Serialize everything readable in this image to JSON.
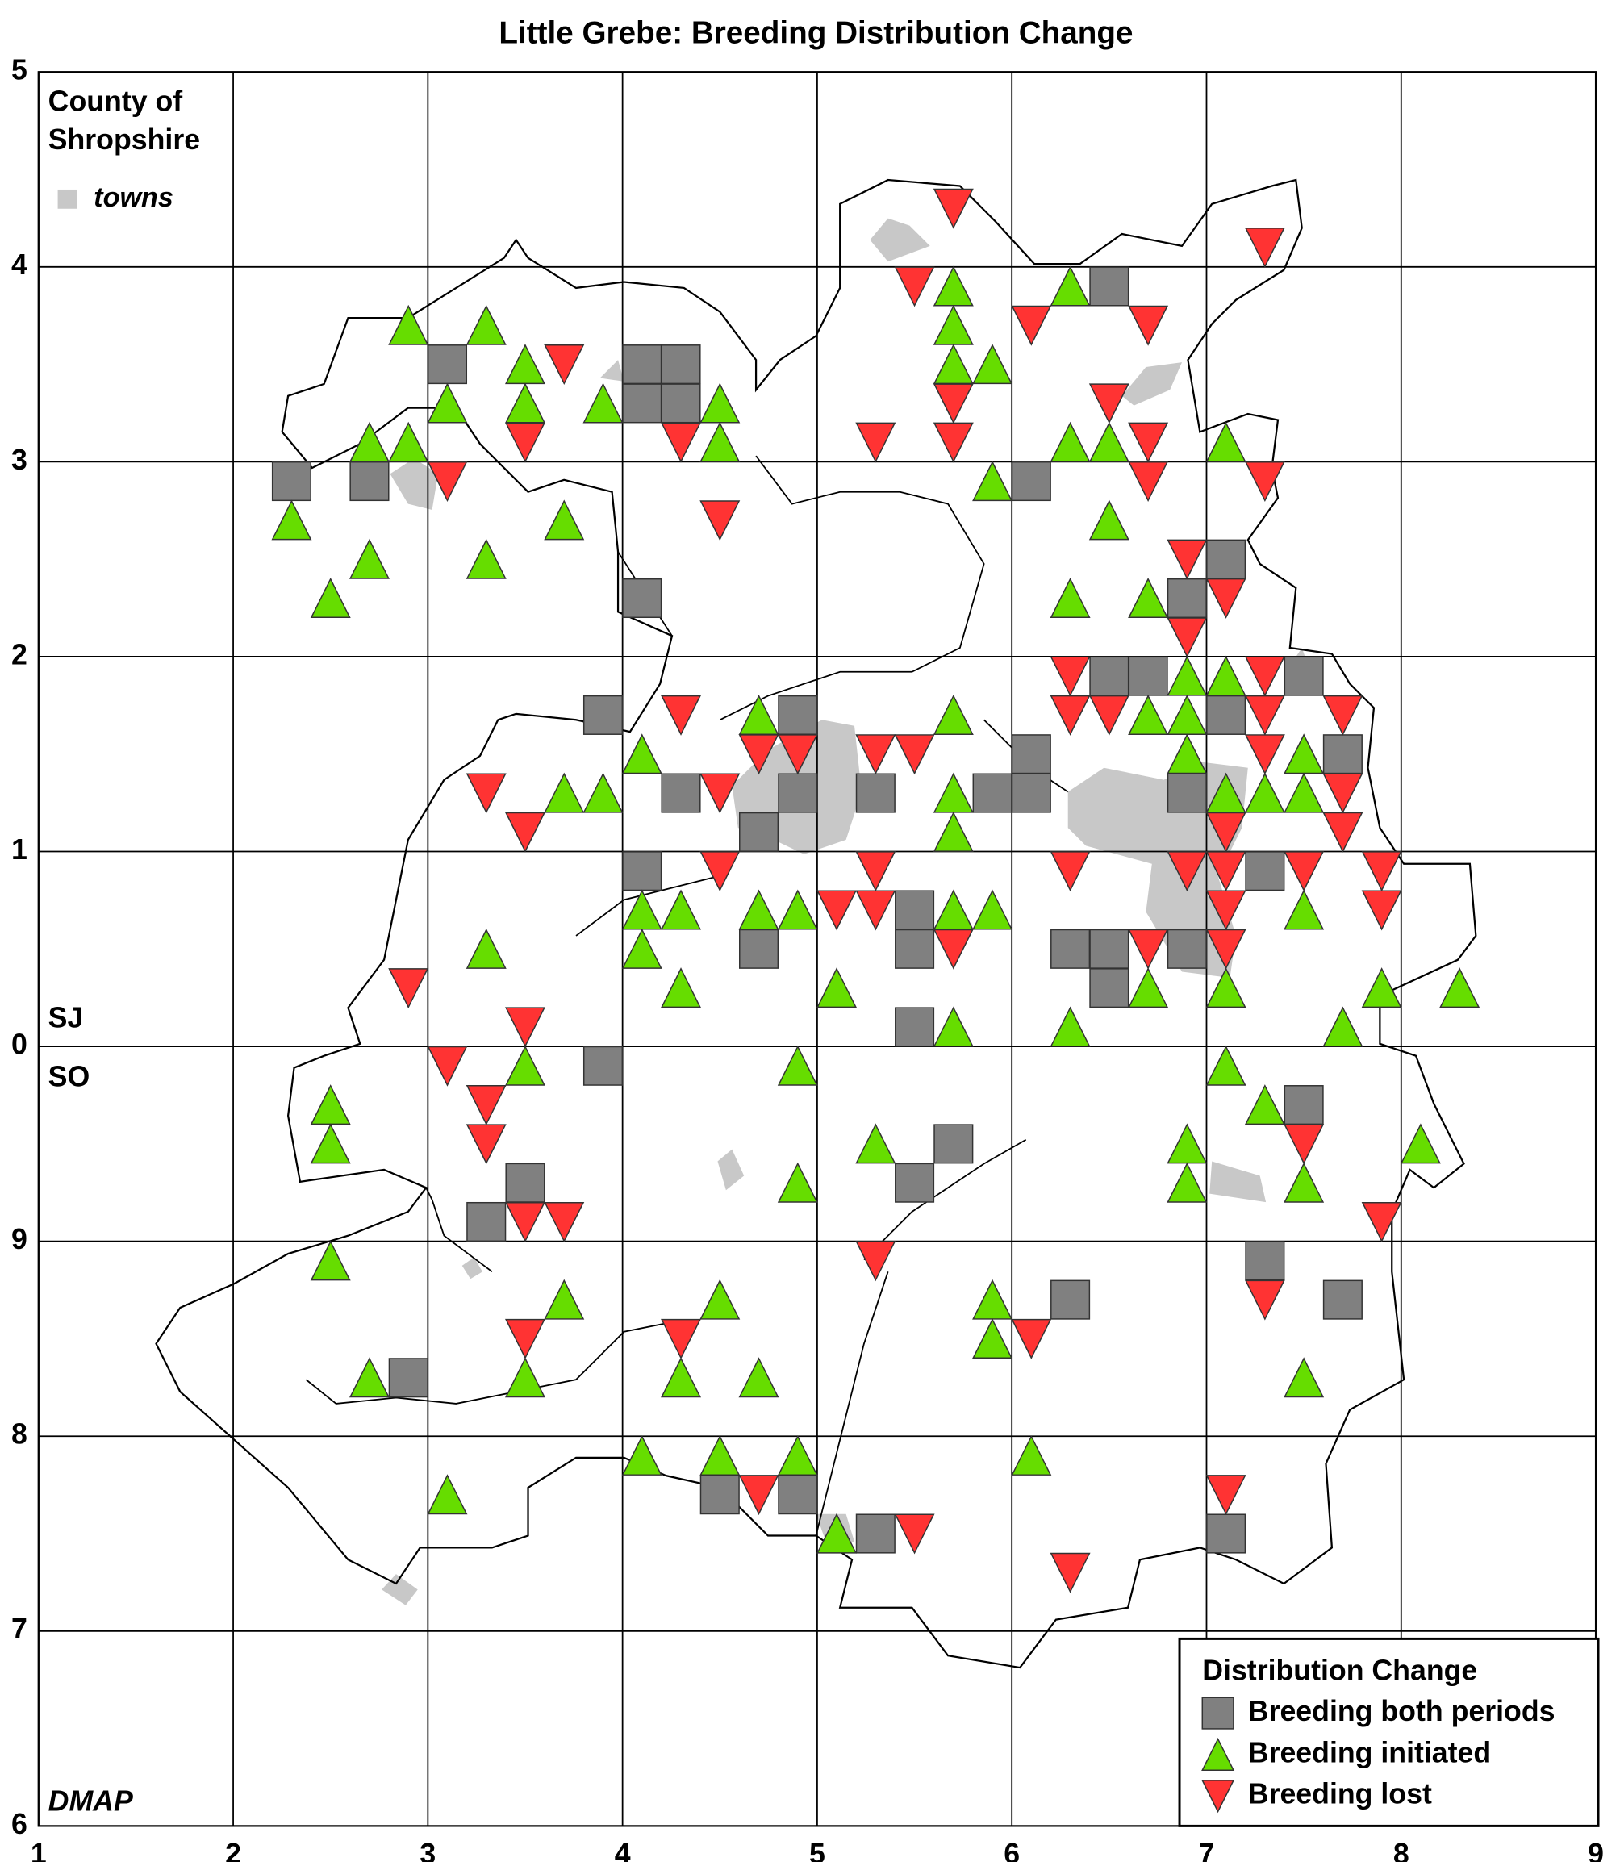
{
  "chart_data": {
    "type": "scatter",
    "title": "Little Grebe: Breeding Distribution Change",
    "county_label": [
      "County of",
      "Shropshire"
    ],
    "towns_label": "towns",
    "grid_labels": {
      "north": "SJ",
      "south": "SO"
    },
    "credit": "DMAP",
    "legend_title": "Distribution Change",
    "legend": "lower right",
    "grid": true,
    "xlim": [
      1,
      9
    ],
    "ylim": [
      6,
      15
    ],
    "xticks": [
      1,
      2,
      3,
      4,
      5,
      6,
      7,
      8,
      9
    ],
    "yticks": [
      6,
      7,
      8,
      9,
      {
        "value": 10,
        "label": "0"
      },
      {
        "value": 11,
        "label": "1"
      },
      {
        "value": 12,
        "label": "2"
      },
      {
        "value": 13,
        "label": "3"
      },
      {
        "value": 14,
        "label": "4"
      },
      {
        "value": 15,
        "label": "5"
      }
    ],
    "series": [
      {
        "name": "Breeding both periods",
        "color": "#808080",
        "marker": "square",
        "x": [
          3.1,
          4.1,
          4.3,
          4.1,
          4.3,
          6.5,
          2.3,
          2.7,
          6.1,
          7.1,
          6.9,
          4.1,
          6.5,
          6.7,
          7.5,
          3.9,
          4.9,
          7.1,
          7.7,
          6.1,
          4.3,
          4.9,
          5.3,
          5.9,
          6.1,
          6.9,
          4.7,
          4.1,
          7.3,
          5.5,
          4.7,
          5.5,
          6.3,
          6.5,
          6.9,
          6.5,
          5.5,
          3.9,
          7.5,
          5.7,
          3.5,
          5.5,
          3.3,
          7.3,
          6.3,
          7.7,
          2.9,
          4.5,
          4.9,
          5.3,
          7.1
        ],
        "values": [
          13.5,
          13.5,
          13.5,
          13.3,
          13.3,
          13.9,
          12.9,
          12.9,
          12.9,
          12.5,
          12.3,
          12.3,
          11.9,
          11.9,
          11.9,
          11.7,
          11.7,
          11.7,
          11.5,
          11.5,
          11.3,
          11.3,
          11.3,
          11.3,
          11.3,
          11.3,
          11.1,
          10.9,
          10.9,
          10.7,
          10.5,
          10.5,
          10.5,
          10.5,
          10.5,
          10.3,
          10.1,
          9.9,
          9.7,
          9.5,
          9.3,
          9.3,
          9.1,
          8.9,
          8.7,
          8.7,
          8.3,
          7.7,
          7.7,
          7.5,
          7.5
        ]
      },
      {
        "name": "Breeding initiated",
        "color": "#66dd00",
        "marker": "triangle-up",
        "x": [
          5.7,
          6.3,
          2.9,
          3.3,
          5.7,
          3.5,
          5.7,
          5.9,
          3.1,
          3.5,
          3.9,
          4.5,
          2.7,
          2.9,
          4.5,
          6.3,
          6.5,
          7.1,
          5.9,
          2.3,
          3.7,
          6.5,
          2.7,
          3.3,
          2.5,
          6.3,
          6.7,
          6.9,
          7.1,
          4.7,
          5.7,
          6.7,
          6.9,
          4.1,
          6.9,
          7.5,
          3.7,
          3.9,
          5.7,
          7.1,
          7.3,
          7.5,
          5.7,
          4.1,
          4.3,
          4.7,
          4.9,
          5.7,
          5.9,
          7.5,
          3.3,
          4.1,
          4.3,
          5.1,
          6.7,
          7.1,
          7.9,
          8.3,
          5.7,
          6.3,
          7.7,
          3.5,
          4.9,
          7.1,
          2.5,
          7.3,
          2.5,
          5.3,
          6.9,
          8.1,
          4.9,
          6.9,
          7.5,
          2.5,
          3.7,
          4.5,
          5.9,
          5.9,
          2.7,
          3.5,
          4.3,
          4.7,
          7.5,
          4.1,
          4.5,
          4.9,
          6.1,
          3.1,
          5.1
        ],
        "values": [
          13.9,
          13.9,
          13.7,
          13.7,
          13.7,
          13.5,
          13.5,
          13.5,
          13.3,
          13.3,
          13.3,
          13.3,
          13.1,
          13.1,
          13.1,
          13.1,
          13.1,
          13.1,
          12.9,
          12.7,
          12.7,
          12.7,
          12.5,
          12.5,
          12.3,
          12.3,
          12.3,
          11.9,
          11.9,
          11.7,
          11.7,
          11.7,
          11.7,
          11.5,
          11.5,
          11.5,
          11.3,
          11.3,
          11.3,
          11.3,
          11.3,
          11.3,
          11.1,
          10.7,
          10.7,
          10.7,
          10.7,
          10.7,
          10.7,
          10.7,
          10.5,
          10.5,
          10.3,
          10.3,
          10.3,
          10.3,
          10.3,
          10.3,
          10.1,
          10.1,
          10.1,
          9.9,
          9.9,
          9.9,
          9.7,
          9.7,
          9.5,
          9.5,
          9.5,
          9.5,
          9.3,
          9.3,
          9.3,
          8.9,
          8.7,
          8.7,
          8.7,
          8.5,
          8.3,
          8.3,
          8.3,
          8.3,
          8.3,
          7.9,
          7.9,
          7.9,
          7.9,
          7.7,
          7.5
        ]
      },
      {
        "name": "Breeding lost",
        "color": "#ff3333",
        "marker": "triangle-down",
        "x": [
          5.7,
          7.3,
          5.5,
          6.1,
          6.7,
          3.7,
          6.5,
          5.7,
          3.5,
          4.3,
          5.3,
          5.7,
          6.7,
          3.1,
          6.7,
          7.3,
          4.5,
          6.9,
          7.1,
          6.9,
          6.3,
          7.3,
          4.3,
          6.3,
          6.5,
          7.3,
          7.7,
          4.7,
          4.9,
          5.3,
          5.5,
          7.3,
          3.3,
          4.5,
          7.7,
          3.5,
          7.1,
          7.7,
          4.5,
          5.3,
          6.3,
          6.9,
          7.1,
          7.5,
          7.9,
          5.1,
          5.3,
          7.1,
          7.9,
          5.7,
          6.7,
          7.1,
          2.9,
          3.5,
          3.1,
          3.3,
          3.3,
          7.5,
          3.5,
          3.7,
          7.9,
          5.3,
          7.3,
          3.5,
          4.3,
          6.1,
          4.7,
          7.1,
          5.5,
          6.3
        ],
        "values": [
          14.3,
          14.1,
          13.9,
          13.7,
          13.7,
          13.5,
          13.3,
          13.3,
          13.1,
          13.1,
          13.1,
          13.1,
          13.1,
          12.9,
          12.9,
          12.9,
          12.7,
          12.5,
          12.3,
          12.1,
          11.9,
          11.9,
          11.7,
          11.7,
          11.7,
          11.7,
          11.7,
          11.5,
          11.5,
          11.5,
          11.5,
          11.5,
          11.3,
          11.3,
          11.3,
          11.1,
          11.1,
          11.1,
          10.9,
          10.9,
          10.9,
          10.9,
          10.9,
          10.9,
          10.9,
          10.7,
          10.7,
          10.7,
          10.7,
          10.5,
          10.5,
          10.5,
          10.3,
          10.1,
          9.9,
          9.7,
          9.5,
          9.5,
          9.1,
          9.1,
          9.1,
          8.9,
          8.7,
          8.5,
          8.5,
          8.5,
          7.7,
          7.7,
          7.5,
          7.3
        ]
      }
    ]
  }
}
